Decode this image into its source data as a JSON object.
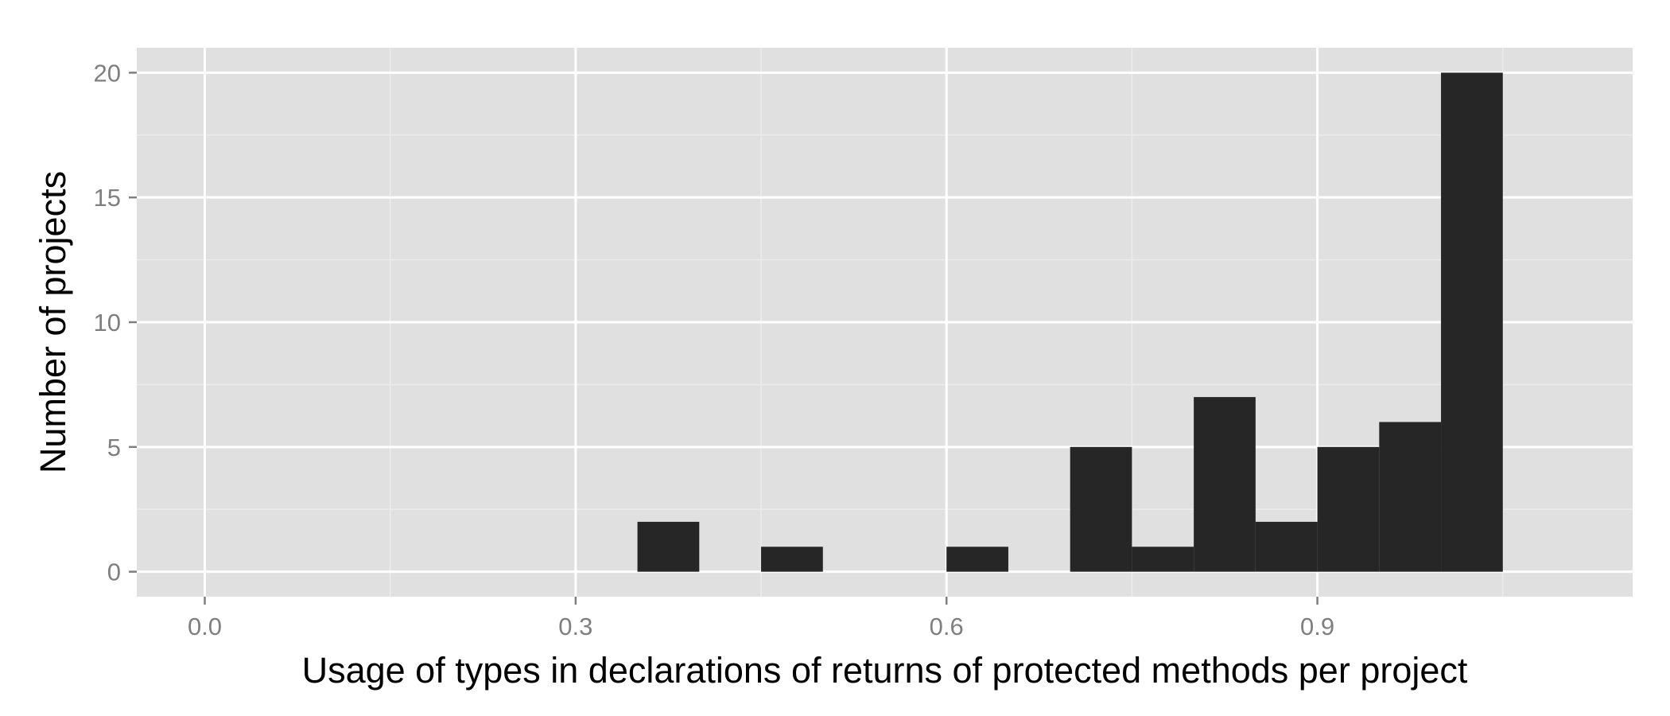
{
  "chart_data": {
    "type": "bar",
    "subtype": "histogram",
    "xlabel": "Usage of types in declarations of returns of protected methods per project",
    "ylabel": "Number of projects",
    "xlim": [
      -0.055,
      1.155
    ],
    "ylim": [
      -1,
      21
    ],
    "x_ticks": [
      {
        "value": 0.0,
        "label": "0.0"
      },
      {
        "value": 0.3,
        "label": "0.3"
      },
      {
        "value": 0.6,
        "label": "0.6"
      },
      {
        "value": 0.9,
        "label": "0.9"
      }
    ],
    "y_ticks": [
      {
        "value": 0,
        "label": "0"
      },
      {
        "value": 5,
        "label": "5"
      },
      {
        "value": 10,
        "label": "10"
      },
      {
        "value": 15,
        "label": "15"
      },
      {
        "value": 20,
        "label": "20"
      }
    ],
    "x_minor_gridlines": [
      0.15,
      0.45,
      0.75,
      1.05
    ],
    "y_minor_gridlines": [
      2.5,
      7.5,
      12.5,
      17.5
    ],
    "bin_width": 0.05,
    "bins": [
      {
        "start": 0.35,
        "end": 0.4,
        "count": 2
      },
      {
        "start": 0.45,
        "end": 0.5,
        "count": 1
      },
      {
        "start": 0.6,
        "end": 0.65,
        "count": 1
      },
      {
        "start": 0.7,
        "end": 0.75,
        "count": 5
      },
      {
        "start": 0.75,
        "end": 0.8,
        "count": 1
      },
      {
        "start": 0.8,
        "end": 0.85,
        "count": 7
      },
      {
        "start": 0.85,
        "end": 0.9,
        "count": 2
      },
      {
        "start": 0.9,
        "end": 0.95,
        "count": 5
      },
      {
        "start": 0.95,
        "end": 1.0,
        "count": 6
      },
      {
        "start": 1.0,
        "end": 1.05,
        "count": 20
      }
    ],
    "grid": true,
    "legend": "none",
    "colors": {
      "panel_background": "#e0e0e0",
      "grid_major": "#ffffff",
      "grid_minor": "#ececec",
      "bar_fill": "#262626",
      "tick_label": "#7f7f7f",
      "tick_mark": "#7f7f7f",
      "axis_title": "#000000"
    }
  }
}
